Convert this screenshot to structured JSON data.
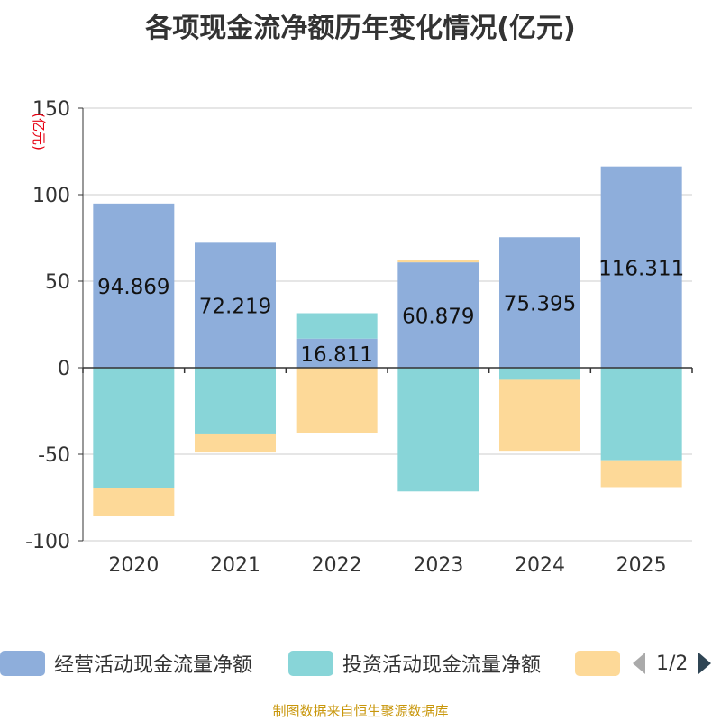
{
  "chart_data": {
    "type": "bar",
    "stacked": true,
    "title": "各项现金流净额历年变化情况(亿元)",
    "ylabel": "(亿元)",
    "ylim": [
      -100,
      150
    ],
    "yticks": [
      -100,
      -50,
      0,
      50,
      100,
      150
    ],
    "categories": [
      "2020",
      "2021",
      "2022",
      "2023",
      "2024",
      "2025"
    ],
    "series": [
      {
        "name": "经营活动现金流量净额",
        "color": "#8eaedb",
        "values": [
          94.869,
          72.219,
          16.811,
          60.879,
          75.395,
          116.311
        ],
        "labels": [
          "94.869",
          "72.219",
          "16.811",
          "60.879",
          "75.395",
          "116.311"
        ]
      },
      {
        "name": "投资活动现金流量净额",
        "color": "#88d5d8",
        "values": [
          -69.5,
          -38.0,
          14.7,
          -71.5,
          -7.0,
          -53.5
        ]
      },
      {
        "name": "",
        "color": "#fdd998",
        "values": [
          -16.0,
          -11.0,
          -37.5,
          1.2,
          -41.0,
          -15.5
        ]
      }
    ]
  },
  "legend": {
    "page": "1/2",
    "prev_icon": "triangle-left-icon",
    "next_icon": "triangle-right-icon"
  },
  "source": "制图数据来自恒生聚源数据库"
}
